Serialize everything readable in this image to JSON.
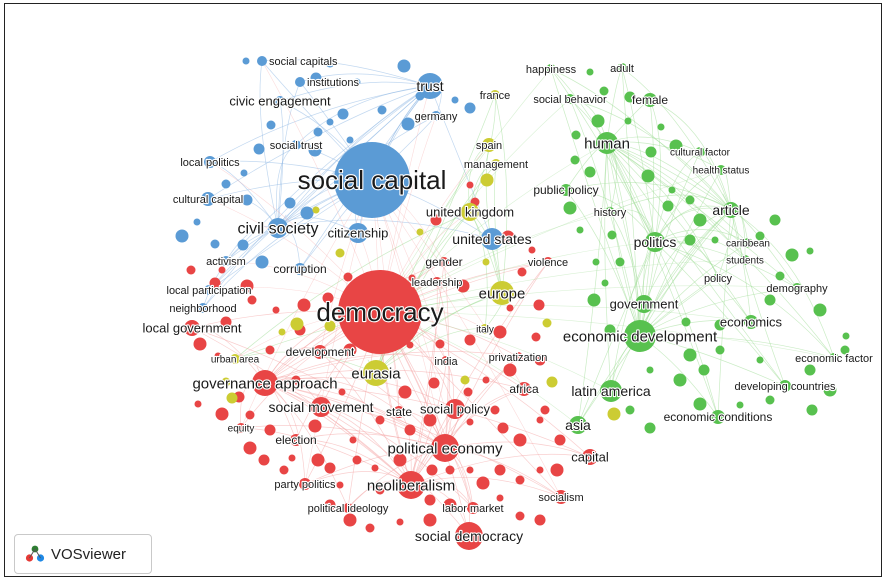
{
  "app": {
    "name": "VOSviewer"
  },
  "colors": {
    "blue": "#5b9bd5",
    "green": "#58c14f",
    "red": "#e84545",
    "yellow": "#cccc33",
    "edge_blue": "#8fb8e3",
    "edge_green": "#9fdc96",
    "edge_red": "#f4a6a6"
  },
  "clusters": [
    "blue",
    "green",
    "red",
    "yellow"
  ],
  "nodes": [
    {
      "label": "social capitals",
      "cluster": "blue"
    },
    {
      "label": "institutions",
      "cluster": "blue"
    },
    {
      "label": "trust",
      "cluster": "blue"
    },
    {
      "label": "civic engagement",
      "cluster": "blue"
    },
    {
      "label": "germany",
      "cluster": "blue"
    },
    {
      "label": "social trust",
      "cluster": "blue"
    },
    {
      "label": "local politics",
      "cluster": "blue"
    },
    {
      "label": "social capital",
      "cluster": "blue"
    },
    {
      "label": "cultural capital",
      "cluster": "blue"
    },
    {
      "label": "civil society",
      "cluster": "blue"
    },
    {
      "label": "citizenship",
      "cluster": "blue"
    },
    {
      "label": "united states",
      "cluster": "blue"
    },
    {
      "label": "activism",
      "cluster": "blue"
    },
    {
      "label": "corruption",
      "cluster": "blue"
    },
    {
      "label": "local participation",
      "cluster": "blue"
    },
    {
      "label": "neighborhood",
      "cluster": "blue"
    },
    {
      "label": "happiness",
      "cluster": "green"
    },
    {
      "label": "adult",
      "cluster": "green"
    },
    {
      "label": "social behavior",
      "cluster": "green"
    },
    {
      "label": "female",
      "cluster": "green"
    },
    {
      "label": "human",
      "cluster": "green"
    },
    {
      "label": "cultural factor",
      "cluster": "green"
    },
    {
      "label": "health status",
      "cluster": "green"
    },
    {
      "label": "public policy",
      "cluster": "green"
    },
    {
      "label": "history",
      "cluster": "green"
    },
    {
      "label": "article",
      "cluster": "green"
    },
    {
      "label": "politics",
      "cluster": "green"
    },
    {
      "label": "caribbean",
      "cluster": "green"
    },
    {
      "label": "students",
      "cluster": "green"
    },
    {
      "label": "policy",
      "cluster": "green"
    },
    {
      "label": "demography",
      "cluster": "green"
    },
    {
      "label": "government",
      "cluster": "green"
    },
    {
      "label": "economics",
      "cluster": "green"
    },
    {
      "label": "economic development",
      "cluster": "green"
    },
    {
      "label": "economic factor",
      "cluster": "green"
    },
    {
      "label": "developing countries",
      "cluster": "green"
    },
    {
      "label": "latin america",
      "cluster": "green"
    },
    {
      "label": "economic conditions",
      "cluster": "green"
    },
    {
      "label": "asia",
      "cluster": "green"
    },
    {
      "label": "france",
      "cluster": "yellow"
    },
    {
      "label": "spain",
      "cluster": "yellow"
    },
    {
      "label": "management",
      "cluster": "yellow"
    },
    {
      "label": "united kingdom",
      "cluster": "yellow"
    },
    {
      "label": "europe",
      "cluster": "yellow"
    },
    {
      "label": "italy",
      "cluster": "yellow"
    },
    {
      "label": "eurasia",
      "cluster": "yellow"
    },
    {
      "label": "urban area",
      "cluster": "yellow"
    },
    {
      "label": "violence",
      "cluster": "red"
    },
    {
      "label": "gender",
      "cluster": "red"
    },
    {
      "label": "leadership",
      "cluster": "red"
    },
    {
      "label": "democracy",
      "cluster": "red"
    },
    {
      "label": "local government",
      "cluster": "red"
    },
    {
      "label": "development",
      "cluster": "red"
    },
    {
      "label": "privatization",
      "cluster": "red"
    },
    {
      "label": "india",
      "cluster": "red"
    },
    {
      "label": "governance approach",
      "cluster": "red"
    },
    {
      "label": "africa",
      "cluster": "red"
    },
    {
      "label": "social movement",
      "cluster": "red"
    },
    {
      "label": "state",
      "cluster": "red"
    },
    {
      "label": "social policy",
      "cluster": "red"
    },
    {
      "label": "equity",
      "cluster": "red"
    },
    {
      "label": "election",
      "cluster": "red"
    },
    {
      "label": "political economy",
      "cluster": "red"
    },
    {
      "label": "capital",
      "cluster": "red"
    },
    {
      "label": "party politics",
      "cluster": "red"
    },
    {
      "label": "neoliberalism",
      "cluster": "red"
    },
    {
      "label": "socialism",
      "cluster": "red"
    },
    {
      "label": "political ideology",
      "cluster": "red"
    },
    {
      "label": "labor market",
      "cluster": "red"
    },
    {
      "label": "social democracy",
      "cluster": "red"
    }
  ]
}
